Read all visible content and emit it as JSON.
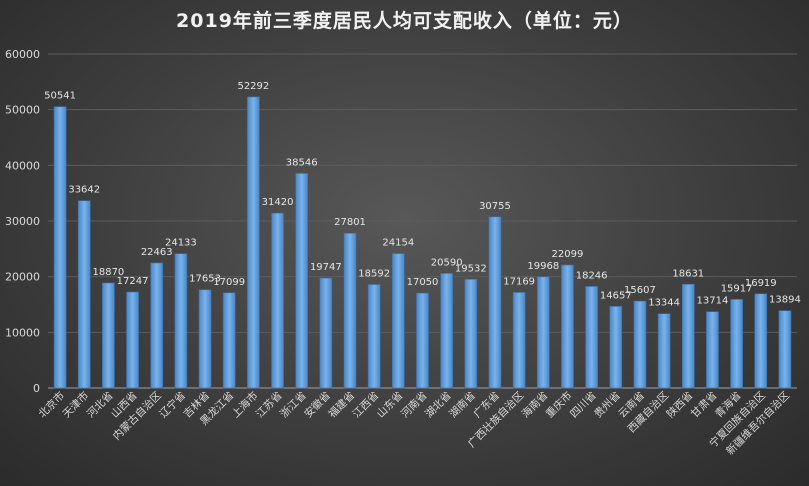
{
  "chart_data": {
    "type": "bar",
    "title": "2019年前三季度居民人均可支配收入（单位：元）",
    "xlabel": "",
    "ylabel": "",
    "ylim": [
      0,
      60000
    ],
    "yticks": [
      0,
      10000,
      20000,
      30000,
      40000,
      50000,
      60000
    ],
    "grid": true,
    "legend": "none",
    "bar_color": "#5b9bd5",
    "categories": [
      "北京市",
      "天津市",
      "河北省",
      "山西省",
      "内蒙古自治区",
      "辽宁省",
      "吉林省",
      "黑龙江省",
      "上海市",
      "江苏省",
      "浙江省",
      "安徽省",
      "福建省",
      "江西省",
      "山东省",
      "河南省",
      "湖北省",
      "湖南省",
      "广东省",
      "广西壮族自治区",
      "海南省",
      "重庆市",
      "四川省",
      "贵州省",
      "云南省",
      "西藏自治区",
      "陕西省",
      "甘肃省",
      "青海省",
      "宁夏回族自治区",
      "新疆维吾尔自治区"
    ],
    "values": [
      50541,
      33642,
      18870,
      17247,
      22463,
      24133,
      17653,
      17099,
      52292,
      31420,
      38546,
      19747,
      27801,
      18592,
      24154,
      17050,
      20590,
      19532,
      30755,
      17169,
      19968,
      22099,
      18246,
      14657,
      15607,
      13344,
      18631,
      13714,
      15917,
      16919,
      13894
    ]
  }
}
